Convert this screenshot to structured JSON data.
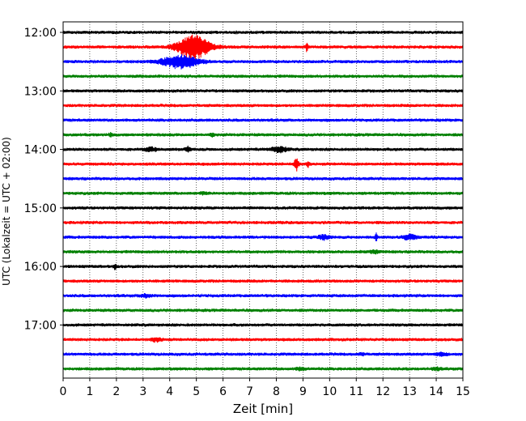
{
  "chart_data": {
    "type": "line",
    "xlabel": "Zeit  [min]",
    "ylabel": "UTC (Lokalzeit = UTC + 02:00)",
    "xlim": [
      0,
      15
    ],
    "x_ticks": [
      0,
      1,
      2,
      3,
      4,
      5,
      6,
      7,
      8,
      9,
      10,
      11,
      12,
      13,
      14,
      15
    ],
    "y_ticks": [
      {
        "label": "12:00",
        "trace_index": 0
      },
      {
        "label": "13:00",
        "trace_index": 4
      },
      {
        "label": "14:00",
        "trace_index": 8
      },
      {
        "label": "15:00",
        "trace_index": 12
      },
      {
        "label": "16:00",
        "trace_index": 16
      },
      {
        "label": "17:00",
        "trace_index": 20
      }
    ],
    "trace_interval_minutes": 15,
    "grid": "vertical-dotted",
    "colors": [
      "#000000",
      "#ff0000",
      "#0000ff",
      "#008000"
    ],
    "traces": [
      {
        "start": "12:00",
        "color": "#000000",
        "events": []
      },
      {
        "start": "12:15",
        "color": "#ff0000",
        "events": [
          {
            "t": 4.9,
            "amp": 1.0,
            "dur": 0.9
          },
          {
            "t": 9.15,
            "amp": 0.4,
            "dur": 0.05
          }
        ]
      },
      {
        "start": "12:30",
        "color": "#0000ff",
        "events": [
          {
            "t": 4.4,
            "amp": 0.55,
            "dur": 1.0
          }
        ]
      },
      {
        "start": "12:45",
        "color": "#008000",
        "events": []
      },
      {
        "start": "13:00",
        "color": "#000000",
        "events": []
      },
      {
        "start": "13:15",
        "color": "#ff0000",
        "events": []
      },
      {
        "start": "13:30",
        "color": "#0000ff",
        "events": []
      },
      {
        "start": "13:45",
        "color": "#008000",
        "events": [
          {
            "t": 1.8,
            "amp": 0.15,
            "dur": 0.1
          },
          {
            "t": 5.6,
            "amp": 0.12,
            "dur": 0.1
          }
        ]
      },
      {
        "start": "14:00",
        "color": "#000000",
        "events": [
          {
            "t": 3.3,
            "amp": 0.15,
            "dur": 0.3
          },
          {
            "t": 4.7,
            "amp": 0.2,
            "dur": 0.15
          },
          {
            "t": 8.1,
            "amp": 0.25,
            "dur": 0.4
          }
        ]
      },
      {
        "start": "14:15",
        "color": "#ff0000",
        "events": [
          {
            "t": 8.75,
            "amp": 0.55,
            "dur": 0.12
          },
          {
            "t": 9.2,
            "amp": 0.2,
            "dur": 0.1
          }
        ]
      },
      {
        "start": "14:30",
        "color": "#0000ff",
        "events": []
      },
      {
        "start": "14:45",
        "color": "#008000",
        "events": [
          {
            "t": 5.3,
            "amp": 0.1,
            "dur": 0.2
          }
        ]
      },
      {
        "start": "15:00",
        "color": "#000000",
        "events": []
      },
      {
        "start": "15:15",
        "color": "#ff0000",
        "events": []
      },
      {
        "start": "15:30",
        "color": "#0000ff",
        "events": [
          {
            "t": 9.8,
            "amp": 0.2,
            "dur": 0.3
          },
          {
            "t": 11.75,
            "amp": 0.3,
            "dur": 0.06
          },
          {
            "t": 13.0,
            "amp": 0.22,
            "dur": 0.35
          }
        ]
      },
      {
        "start": "15:45",
        "color": "#008000",
        "events": [
          {
            "t": 11.7,
            "amp": 0.12,
            "dur": 0.25
          }
        ]
      },
      {
        "start": "16:00",
        "color": "#000000",
        "events": [
          {
            "t": 1.95,
            "amp": 0.2,
            "dur": 0.08
          }
        ]
      },
      {
        "start": "16:15",
        "color": "#ff0000",
        "events": []
      },
      {
        "start": "16:30",
        "color": "#0000ff",
        "events": [
          {
            "t": 3.1,
            "amp": 0.12,
            "dur": 0.3
          }
        ]
      },
      {
        "start": "16:45",
        "color": "#008000",
        "events": []
      },
      {
        "start": "17:00",
        "color": "#000000",
        "events": []
      },
      {
        "start": "17:15",
        "color": "#ff0000",
        "events": [
          {
            "t": 3.5,
            "amp": 0.15,
            "dur": 0.3
          }
        ]
      },
      {
        "start": "17:30",
        "color": "#0000ff",
        "events": [
          {
            "t": 11.2,
            "amp": 0.1,
            "dur": 0.15
          },
          {
            "t": 14.2,
            "amp": 0.12,
            "dur": 0.3
          }
        ]
      },
      {
        "start": "17:45",
        "color": "#008000",
        "events": [
          {
            "t": 8.9,
            "amp": 0.12,
            "dur": 0.2
          },
          {
            "t": 14.0,
            "amp": 0.12,
            "dur": 0.2
          }
        ]
      }
    ]
  }
}
